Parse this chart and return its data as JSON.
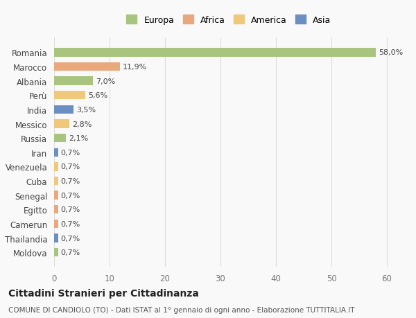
{
  "countries": [
    "Romania",
    "Marocco",
    "Albania",
    "Perù",
    "India",
    "Messico",
    "Russia",
    "Iran",
    "Venezuela",
    "Cuba",
    "Senegal",
    "Egitto",
    "Camerun",
    "Thailandia",
    "Moldova"
  ],
  "values": [
    58.0,
    11.9,
    7.0,
    5.6,
    3.5,
    2.8,
    2.1,
    0.7,
    0.7,
    0.7,
    0.7,
    0.7,
    0.7,
    0.7,
    0.7
  ],
  "labels": [
    "58,0%",
    "11,9%",
    "7,0%",
    "5,6%",
    "3,5%",
    "2,8%",
    "2,1%",
    "0,7%",
    "0,7%",
    "0,7%",
    "0,7%",
    "0,7%",
    "0,7%",
    "0,7%",
    "0,7%"
  ],
  "colors": [
    "#a8c47e",
    "#e8a87c",
    "#a8c47e",
    "#f0c87c",
    "#6b8fc2",
    "#f0c87c",
    "#a8c47e",
    "#6b8fc2",
    "#f0c87c",
    "#f0c87c",
    "#e8a87c",
    "#e8a87c",
    "#e8a87c",
    "#6b8fc2",
    "#a8c47e"
  ],
  "legend_labels": [
    "Europa",
    "Africa",
    "America",
    "Asia"
  ],
  "legend_colors": [
    "#a8c47e",
    "#e8a87c",
    "#f0c87c",
    "#6b8fc2"
  ],
  "title": "Cittadini Stranieri per Cittadinanza",
  "subtitle": "COMUNE DI CANDIOLO (TO) - Dati ISTAT al 1° gennaio di ogni anno - Elaborazione TUTTITALIA.IT",
  "xlim": [
    0,
    63
  ],
  "xticks": [
    0,
    10,
    20,
    30,
    40,
    50,
    60
  ],
  "background_color": "#f9f9f9",
  "grid_color": "#dddddd"
}
